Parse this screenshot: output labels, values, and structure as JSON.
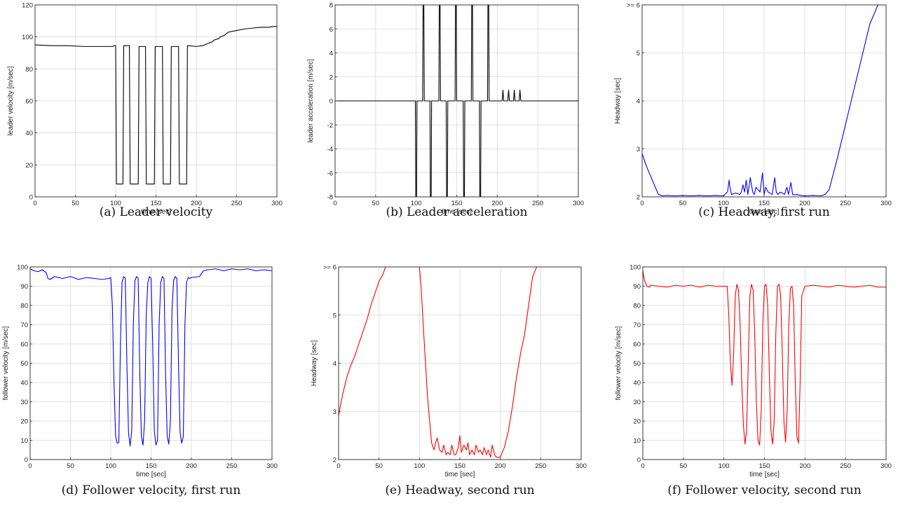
{
  "chart_data": [
    {
      "type": "line",
      "caption": "(a) Leader velocity",
      "xlabel": "time [sec]",
      "ylabel": "leader velocity [m/sec]",
      "xlim": [
        0,
        300
      ],
      "ylim": [
        0,
        120
      ],
      "xticks": [
        0,
        50,
        100,
        150,
        200,
        250,
        300
      ],
      "yticks": [
        0,
        20,
        40,
        60,
        80,
        100,
        120
      ],
      "xtick_labels": [
        "0",
        "50",
        "100",
        "150",
        "200",
        "250",
        "300"
      ],
      "ytick_labels": [
        "0",
        "20",
        "40",
        "60",
        "80",
        "100",
        "120"
      ],
      "grid": true,
      "series": [
        {
          "color": "#000000",
          "x": [
            0,
            20,
            40,
            60,
            80,
            95,
            99,
            100,
            101,
            102,
            108,
            109,
            110,
            117,
            118,
            120,
            128,
            129,
            130,
            137,
            138,
            141,
            148,
            149,
            150,
            158,
            159,
            162,
            168,
            169,
            170,
            178,
            179,
            182,
            188,
            189,
            190,
            200,
            208,
            210,
            215,
            220,
            222,
            228,
            230,
            235,
            237,
            240,
            250,
            260,
            270,
            280,
            290,
            295,
            300
          ],
          "y": [
            95,
            94.5,
            94.5,
            94,
            94,
            94,
            94.5,
            94.5,
            8,
            8,
            8,
            8,
            94.5,
            94.5,
            8,
            8,
            8,
            94,
            94,
            94,
            8,
            8,
            8,
            94,
            94,
            94,
            8,
            8,
            8,
            94,
            94,
            94,
            8,
            8,
            8,
            94.5,
            94.5,
            94,
            94.5,
            95,
            96,
            97,
            98,
            99,
            100,
            101,
            102,
            103,
            104,
            105,
            105.5,
            106,
            106,
            106.5,
            106.5
          ]
        }
      ]
    },
    {
      "type": "line",
      "caption": "(b) Leader acceleration",
      "xlabel": "time [sec]",
      "ylabel": "leader acceleration [m/sec]",
      "xlim": [
        0,
        300
      ],
      "ylim": [
        -8,
        8
      ],
      "xticks": [
        0,
        50,
        100,
        150,
        200,
        250,
        300
      ],
      "yticks": [
        -8,
        -6,
        -4,
        -2,
        0,
        2,
        4,
        6,
        8
      ],
      "xtick_labels": [
        "0",
        "50",
        "100",
        "150",
        "200",
        "250",
        "300"
      ],
      "ytick_labels": [
        "-8",
        "-6",
        "-4",
        "-2",
        "0",
        "2",
        "4",
        "6",
        "8"
      ],
      "grid": true,
      "series": [
        {
          "color": "#000000",
          "x": [
            0,
            20,
            40,
            60,
            80,
            99,
            99.5,
            100,
            100.5,
            101,
            102,
            108,
            108.5,
            109,
            109.5,
            110,
            117,
            117.5,
            118,
            118.5,
            119,
            128,
            128.5,
            129,
            129.5,
            130,
            137,
            137.5,
            138,
            138.5,
            139,
            148,
            148.5,
            149,
            149.5,
            150,
            158,
            158.5,
            159,
            159.5,
            160,
            168,
            168.5,
            169,
            169.5,
            170,
            178,
            178.5,
            179,
            179.5,
            180,
            188,
            188.5,
            189,
            189.5,
            190,
            206,
            207,
            208,
            213,
            214,
            215,
            220,
            221,
            222,
            227,
            228,
            229,
            240,
            260,
            280,
            300
          ],
          "y": [
            0,
            0,
            0,
            0,
            0,
            0,
            -8,
            -8,
            -8,
            0,
            0,
            0,
            8,
            8,
            8,
            0,
            0,
            -8,
            -8,
            -8,
            0,
            0,
            8,
            8,
            8,
            0,
            0,
            -8,
            -8,
            -8,
            0,
            0,
            8,
            8,
            8,
            0,
            0,
            -8,
            -8,
            -8,
            0,
            0,
            8,
            8,
            8,
            0,
            0,
            -8,
            -8,
            -8,
            0,
            0,
            8,
            8,
            8,
            0,
            0,
            0.9,
            0,
            0,
            0.9,
            0,
            0,
            0.9,
            0,
            0,
            0.9,
            0,
            0,
            0,
            0,
            0
          ]
        }
      ]
    },
    {
      "type": "line",
      "caption": "(c) Headway, first run",
      "xlabel": "time [sec]",
      "ylabel": "Headway [sec]",
      "xlim": [
        0,
        300
      ],
      "ylim": [
        2,
        6
      ],
      "xticks": [
        0,
        50,
        100,
        150,
        200,
        250,
        300
      ],
      "yticks": [
        2,
        3,
        4,
        5,
        6
      ],
      "xtick_labels": [
        "0",
        "50",
        "100",
        "150",
        "200",
        "250",
        "300"
      ],
      "ytick_labels": [
        "2",
        "3",
        "4",
        "5",
        ">= 6"
      ],
      "grid": true,
      "series": [
        {
          "color": "#0000ff",
          "x": [
            0,
            5,
            10,
            15,
            20,
            25,
            30,
            40,
            50,
            60,
            70,
            80,
            90,
            100,
            105,
            107,
            108,
            110,
            115,
            120,
            122,
            124,
            126,
            128,
            130,
            133,
            136,
            138,
            140,
            145,
            148,
            150,
            152,
            155,
            160,
            163,
            165,
            167,
            170,
            175,
            178,
            180,
            183,
            185,
            188,
            190,
            195,
            200,
            210,
            220,
            225,
            230,
            240,
            250,
            260,
            270,
            280,
            290,
            300
          ],
          "y": [
            2.9,
            2.65,
            2.45,
            2.25,
            2.05,
            2.02,
            2.03,
            2.02,
            2.03,
            2.02,
            2.03,
            2.02,
            2.03,
            2.02,
            2.1,
            2.35,
            2.2,
            2.05,
            2.08,
            2.05,
            2.1,
            2.25,
            2.1,
            2.35,
            2.05,
            2.4,
            2.1,
            2.05,
            2.2,
            2.1,
            2.5,
            2.05,
            2.2,
            2.1,
            2.05,
            2.4,
            2.1,
            2.05,
            2.1,
            2.05,
            2.2,
            2.05,
            2.3,
            2.05,
            2.04,
            2.05,
            2.03,
            2.02,
            2.03,
            2.02,
            2.05,
            2.15,
            2.8,
            3.5,
            4.2,
            4.9,
            5.6,
            6,
            6
          ]
        }
      ]
    },
    {
      "type": "line",
      "caption": "(d) Follower velocity, first run",
      "xlabel": "time [sec]",
      "ylabel": "follower velocity [m/sec]",
      "xlim": [
        0,
        300
      ],
      "ylim": [
        0,
        100
      ],
      "xticks": [
        0,
        50,
        100,
        150,
        200,
        250,
        300
      ],
      "yticks": [
        0,
        10,
        20,
        30,
        40,
        50,
        60,
        70,
        80,
        90,
        100
      ],
      "xtick_labels": [
        "0",
        "50",
        "100",
        "150",
        "200",
        "250",
        "300"
      ],
      "ytick_labels": [
        "0",
        "10",
        "20",
        "30",
        "40",
        "50",
        "60",
        "70",
        "80",
        "90",
        "100"
      ],
      "grid": true,
      "series": [
        {
          "color": "#0000ff",
          "x": [
            0,
            5,
            10,
            15,
            20,
            22,
            25,
            30,
            40,
            50,
            60,
            70,
            80,
            90,
            98,
            100,
            102,
            104,
            106,
            108,
            110,
            112,
            114,
            116,
            118,
            120,
            122,
            124,
            126,
            128,
            130,
            132,
            134,
            136,
            138,
            140,
            142,
            144,
            146,
            148,
            150,
            152,
            154,
            156,
            158,
            160,
            162,
            164,
            166,
            168,
            170,
            172,
            174,
            176,
            178,
            180,
            182,
            184,
            186,
            188,
            190,
            192,
            194,
            196,
            198,
            200,
            210,
            215,
            220,
            230,
            240,
            250,
            260,
            270,
            280,
            290,
            300
          ],
          "y": [
            99,
            98,
            97.5,
            98.5,
            97,
            94,
            93.5,
            95,
            94,
            95,
            93.5,
            94.5,
            94,
            93.5,
            94,
            94.5,
            80,
            40,
            12,
            8.5,
            9,
            60,
            92,
            95,
            94,
            50,
            14,
            7,
            15,
            70,
            93,
            95,
            94,
            45,
            12,
            7.5,
            20,
            75,
            92,
            95,
            94,
            60,
            15,
            7.5,
            10,
            70,
            92,
            95,
            94,
            45,
            12,
            8,
            20,
            78,
            93,
            95,
            94,
            50,
            14,
            8.5,
            12,
            70,
            92,
            94.5,
            94,
            94.5,
            95,
            98,
            98.5,
            99,
            98,
            99,
            98.5,
            99,
            98,
            98.5,
            98
          ]
        }
      ]
    },
    {
      "type": "line",
      "caption": "(e) Headway, second run",
      "xlabel": "time [sec]",
      "ylabel": "Headway [sec]",
      "xlim": [
        0,
        300
      ],
      "ylim": [
        2,
        6
      ],
      "xticks": [
        0,
        50,
        100,
        150,
        200,
        250,
        300
      ],
      "yticks": [
        2,
        3,
        4,
        5,
        6
      ],
      "xtick_labels": [
        "0",
        "50",
        "100",
        "150",
        "200",
        "250",
        "300"
      ],
      "ytick_labels": [
        "2",
        "3",
        "4",
        "5",
        ">= 6"
      ],
      "grid": true,
      "series": [
        {
          "color": "#ff0000",
          "x": [
            0,
            2,
            5,
            10,
            15,
            20,
            25,
            30,
            35,
            40,
            45,
            50,
            55,
            58,
            60,
            80,
            100,
            102,
            105,
            110,
            115,
            118,
            120,
            122,
            125,
            128,
            130,
            133,
            135,
            138,
            140,
            143,
            145,
            148,
            150,
            152,
            155,
            158,
            160,
            162,
            165,
            168,
            170,
            173,
            175,
            178,
            180,
            183,
            185,
            188,
            190,
            193,
            195,
            200,
            205,
            210,
            215,
            220,
            225,
            230,
            235,
            240,
            245,
            260,
            280,
            300
          ],
          "y": [
            2.9,
            3.1,
            3.35,
            3.7,
            3.95,
            4.15,
            4.4,
            4.65,
            4.9,
            5.2,
            5.45,
            5.7,
            5.85,
            6,
            6,
            6,
            6,
            5.6,
            4.7,
            3.3,
            2.35,
            2.2,
            2.35,
            2.45,
            2.2,
            2.15,
            2.3,
            2.1,
            2.15,
            2.1,
            2.3,
            2.1,
            2.1,
            2.25,
            2.5,
            2.15,
            2.3,
            2.2,
            2.35,
            2.1,
            2.2,
            2.1,
            2.3,
            2.15,
            2.2,
            2.1,
            2.25,
            2.1,
            2.2,
            2.05,
            2.3,
            2.1,
            2.05,
            2.05,
            2.25,
            2.6,
            3.1,
            3.7,
            4.2,
            4.6,
            5.2,
            5.8,
            6,
            6,
            6,
            6
          ]
        }
      ]
    },
    {
      "type": "line",
      "caption": "(f) Follower velocity, second run",
      "xlabel": "time [sec]",
      "ylabel": "follower velocity [m/sec]",
      "xlim": [
        0,
        300
      ],
      "ylim": [
        0,
        100
      ],
      "xticks": [
        0,
        50,
        100,
        150,
        200,
        250,
        300
      ],
      "yticks": [
        0,
        10,
        20,
        30,
        40,
        50,
        60,
        70,
        80,
        90,
        100
      ],
      "xtick_labels": [
        "0",
        "50",
        "100",
        "150",
        "200",
        "250",
        "300"
      ],
      "ytick_labels": [
        "0",
        "10",
        "20",
        "30",
        "40",
        "50",
        "60",
        "70",
        "80",
        "90",
        "100"
      ],
      "grid": true,
      "series": [
        {
          "color": "#ff0000",
          "x": [
            0,
            2,
            5,
            8,
            10,
            20,
            30,
            40,
            50,
            60,
            70,
            80,
            90,
            100,
            104,
            106,
            108,
            110,
            112,
            114,
            116,
            118,
            120,
            122,
            124,
            126,
            128,
            130,
            132,
            134,
            136,
            138,
            140,
            142,
            144,
            146,
            148,
            150,
            152,
            154,
            156,
            158,
            160,
            162,
            164,
            166,
            168,
            170,
            172,
            174,
            176,
            178,
            180,
            182,
            184,
            186,
            188,
            190,
            192,
            194,
            196,
            200,
            210,
            220,
            230,
            240,
            250,
            260,
            270,
            280,
            290,
            300
          ],
          "y": [
            98,
            93,
            90,
            89.5,
            90.5,
            90,
            89.5,
            90.5,
            90,
            90.5,
            89.5,
            90.5,
            90,
            90,
            90,
            75,
            50,
            38.5,
            55,
            85,
            91,
            88,
            70,
            40,
            18,
            8,
            15,
            50,
            85,
            91,
            88,
            65,
            30,
            10,
            7.5,
            25,
            70,
            90,
            91,
            80,
            45,
            15,
            8,
            20,
            65,
            90,
            91,
            85,
            55,
            20,
            9,
            25,
            70,
            89,
            90,
            80,
            40,
            12,
            8.5,
            40,
            85,
            90,
            90.5,
            90,
            89.5,
            90.5,
            90,
            89.5,
            90,
            90.5,
            89.5,
            89.5
          ]
        }
      ]
    }
  ]
}
